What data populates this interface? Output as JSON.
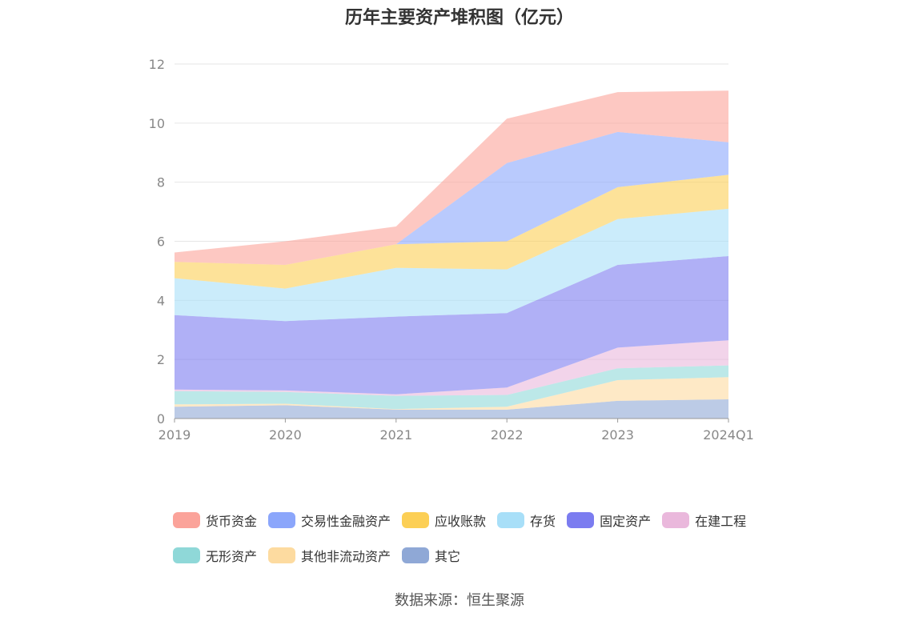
{
  "title": "历年主要资产堆积图（亿元）",
  "source": "数据来源：恒生聚源",
  "chart_data": {
    "type": "area",
    "stacked": true,
    "title": "历年主要资产堆积图（亿元）",
    "categories": [
      "2019",
      "2020",
      "2021",
      "2022",
      "2023",
      "2024Q1"
    ],
    "ylim": [
      0,
      12
    ],
    "yticks": [
      0,
      2,
      4,
      6,
      8,
      10,
      12
    ],
    "grid": true,
    "legend_position": "bottom",
    "series": [
      {
        "name": "其它",
        "color": "#8fa8d6",
        "values": [
          0.4,
          0.45,
          0.3,
          0.3,
          0.6,
          0.65
        ]
      },
      {
        "name": "其他非流动资产",
        "color": "#fddba0",
        "values": [
          0.08,
          0.05,
          0.02,
          0.1,
          0.7,
          0.75
        ]
      },
      {
        "name": "无形资产",
        "color": "#8fd8d8",
        "values": [
          0.45,
          0.4,
          0.45,
          0.4,
          0.4,
          0.4
        ]
      },
      {
        "name": "在建工程",
        "color": "#eab8dc",
        "values": [
          0.05,
          0.05,
          0.05,
          0.25,
          0.7,
          0.85
        ]
      },
      {
        "name": "固定资产",
        "color": "#7b7cf0",
        "values": [
          2.52,
          2.35,
          2.63,
          2.52,
          2.8,
          2.85
        ]
      },
      {
        "name": "存货",
        "color": "#a8dff8",
        "values": [
          1.25,
          1.1,
          1.65,
          1.48,
          1.55,
          1.6
        ]
      },
      {
        "name": "应收账款",
        "color": "#fccf55",
        "values": [
          0.55,
          0.8,
          0.8,
          0.95,
          1.08,
          1.15
        ]
      },
      {
        "name": "交易性金融资产",
        "color": "#8ba6fb",
        "values": [
          0.0,
          0.0,
          0.0,
          2.65,
          1.87,
          1.1
        ]
      },
      {
        "name": "货币资金",
        "color": "#fba39a",
        "values": [
          0.32,
          0.8,
          0.6,
          1.5,
          1.35,
          1.75
        ]
      }
    ]
  }
}
